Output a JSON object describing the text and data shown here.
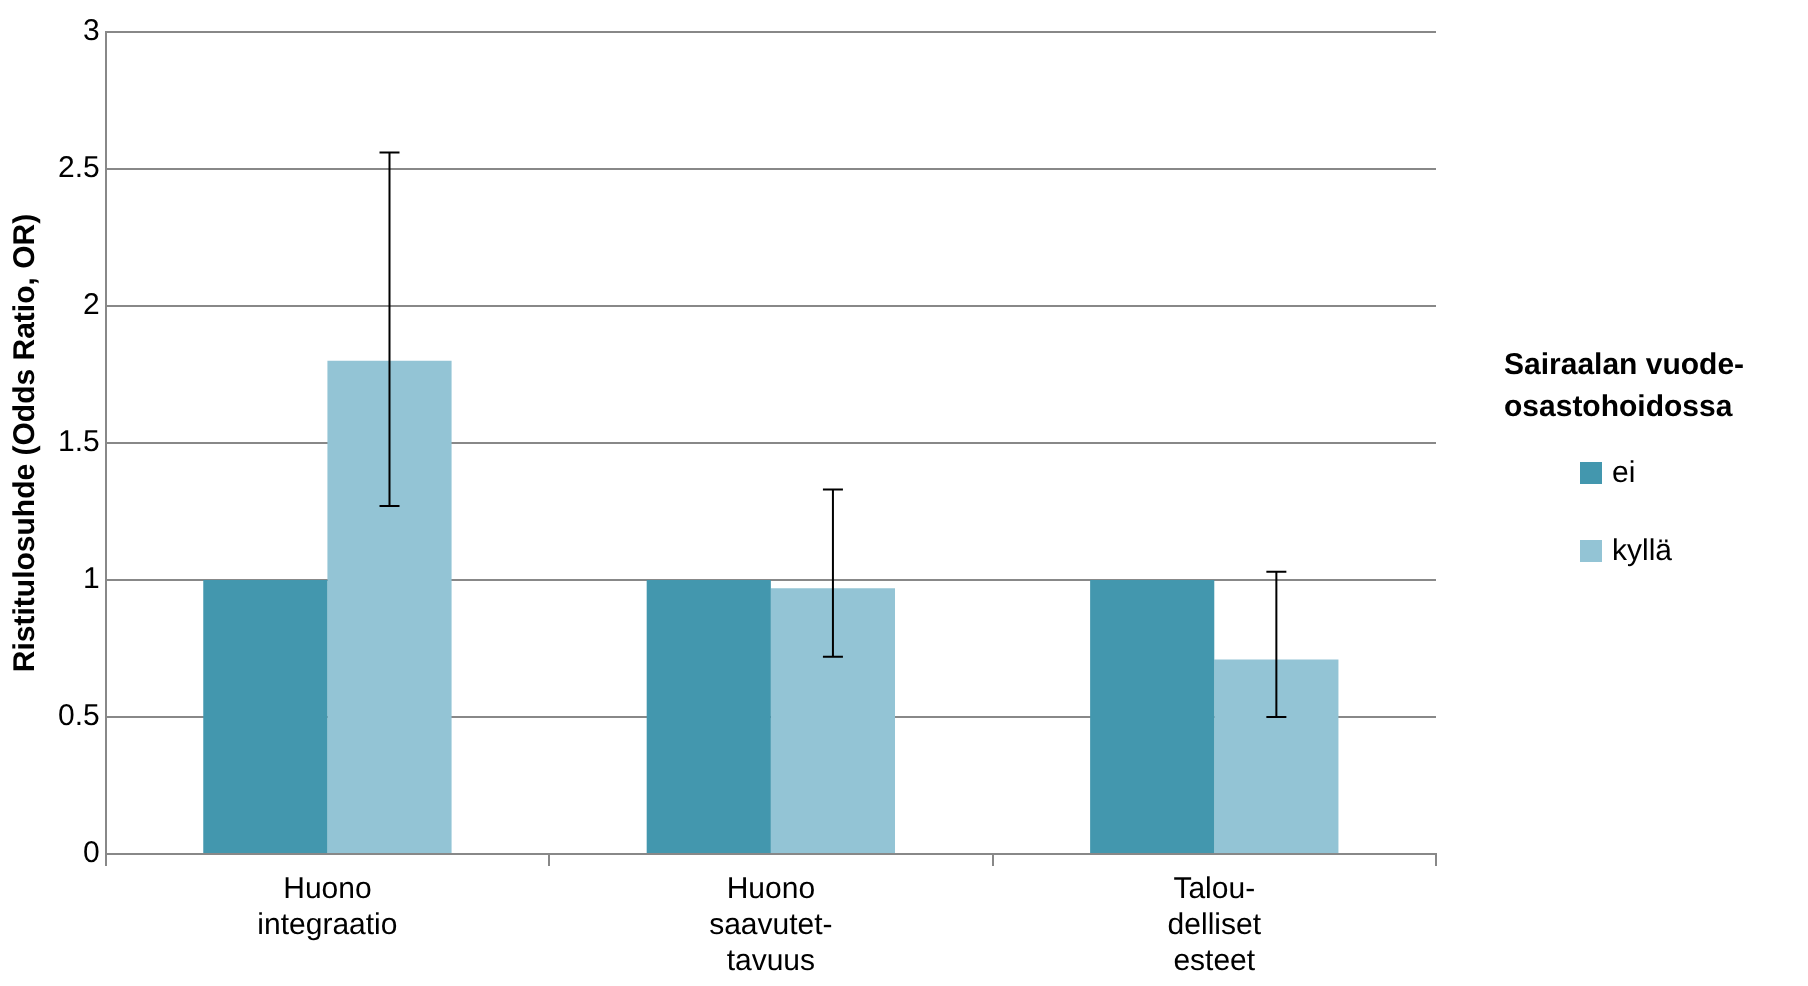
{
  "chart_data": {
    "type": "bar",
    "ylabel": "Ristitulosuhde (Odds Ratio, OR)",
    "legend_title": "Sairaalan vuode-osastohoidossa",
    "categories": [
      "Huono\nintegraatio",
      "Huono\nsaavutet-\ntavuus",
      "Talou-\ndelliset\nesteet"
    ],
    "series": [
      {
        "name": "ei",
        "color": "#4397ae",
        "values": [
          1,
          1,
          1
        ]
      },
      {
        "name": "kyllä",
        "color": "#93c4d5",
        "values": [
          1.8,
          0.97,
          0.71
        ],
        "errors": [
          [
            1.27,
            2.56
          ],
          [
            0.72,
            1.33
          ],
          [
            0.5,
            1.03
          ]
        ]
      }
    ],
    "ylim": [
      0,
      3
    ],
    "yticks": [
      0,
      0.5,
      1,
      1.5,
      2,
      2.5,
      3
    ],
    "grid": "y",
    "legend": "right"
  }
}
